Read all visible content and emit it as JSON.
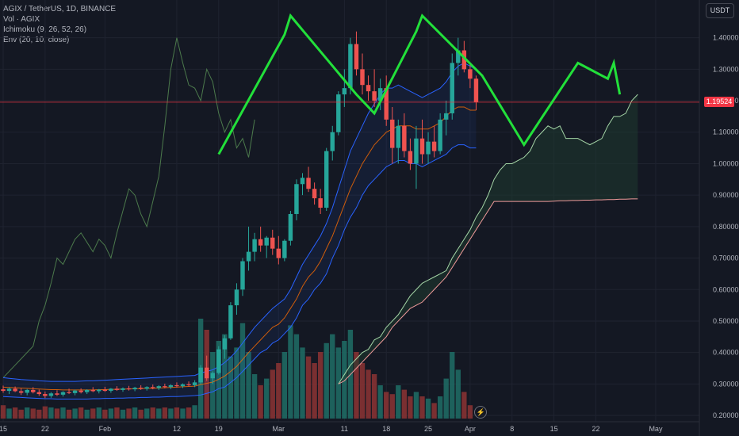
{
  "legend": {
    "symbol": "AGIX / TetherUS, 1D, BINANCE",
    "volume": "Vol · AGIX",
    "ichimoku": "Ichimoku (9, 26, 52, 26)",
    "envelope": "Env (20, 10, close)"
  },
  "currency_button": "USDT",
  "current_price_label": "1.19524",
  "bolt_icon": "lightning-icon",
  "colors": {
    "background": "#141823",
    "up": "#26a69a",
    "down": "#ef5350",
    "pattern": "#22e03a",
    "envelope": "#2962ff",
    "cloud": "#1d3a2f",
    "lagging": "#4c7a4c"
  },
  "chart_data": {
    "type": "candlestick",
    "y_axis": {
      "min": 0.18,
      "max": 1.52,
      "ticks": [
        "1.40000",
        "1.30000",
        "1.20000",
        "1.10000",
        "1.00000",
        "0.90000",
        "0.80000",
        "0.70000",
        "0.60000",
        "0.50000",
        "0.40000",
        "0.30000",
        "0.20000"
      ],
      "tick_values": [
        1.4,
        1.3,
        1.2,
        1.1,
        1.0,
        0.9,
        0.8,
        0.7,
        0.6,
        0.5,
        0.4,
        0.3,
        0.2
      ]
    },
    "x_axis": {
      "labels": [
        "15",
        "22",
        "Feb",
        "12",
        "19",
        "Mar",
        "11",
        "18",
        "25",
        "Apr",
        "8",
        "15",
        "22",
        "May"
      ],
      "label_index": [
        0,
        7,
        17,
        29,
        36,
        46,
        57,
        64,
        71,
        78,
        85,
        92,
        99,
        109
      ]
    },
    "current_price": 1.19524,
    "candles": [
      [
        0.283,
        0.295,
        0.272,
        0.278
      ],
      [
        0.278,
        0.289,
        0.268,
        0.285
      ],
      [
        0.285,
        0.292,
        0.274,
        0.277
      ],
      [
        0.277,
        0.286,
        0.265,
        0.272
      ],
      [
        0.272,
        0.284,
        0.264,
        0.281
      ],
      [
        0.281,
        0.29,
        0.27,
        0.274
      ],
      [
        0.274,
        0.282,
        0.262,
        0.268
      ],
      [
        0.268,
        0.276,
        0.255,
        0.262
      ],
      [
        0.262,
        0.274,
        0.256,
        0.27
      ],
      [
        0.27,
        0.28,
        0.262,
        0.266
      ],
      [
        0.266,
        0.277,
        0.26,
        0.274
      ],
      [
        0.274,
        0.285,
        0.268,
        0.271
      ],
      [
        0.271,
        0.282,
        0.264,
        0.279
      ],
      [
        0.279,
        0.286,
        0.27,
        0.274
      ],
      [
        0.274,
        0.283,
        0.268,
        0.281
      ],
      [
        0.281,
        0.29,
        0.274,
        0.277
      ],
      [
        0.277,
        0.284,
        0.27,
        0.282
      ],
      [
        0.282,
        0.291,
        0.275,
        0.278
      ],
      [
        0.278,
        0.287,
        0.272,
        0.285
      ],
      [
        0.285,
        0.293,
        0.278,
        0.281
      ],
      [
        0.281,
        0.289,
        0.275,
        0.286
      ],
      [
        0.286,
        0.294,
        0.279,
        0.283
      ],
      [
        0.283,
        0.291,
        0.277,
        0.288
      ],
      [
        0.288,
        0.296,
        0.281,
        0.285
      ],
      [
        0.285,
        0.293,
        0.279,
        0.29
      ],
      [
        0.29,
        0.298,
        0.283,
        0.287
      ],
      [
        0.287,
        0.296,
        0.281,
        0.293
      ],
      [
        0.293,
        0.301,
        0.286,
        0.29
      ],
      [
        0.29,
        0.299,
        0.284,
        0.296
      ],
      [
        0.296,
        0.305,
        0.289,
        0.293
      ],
      [
        0.293,
        0.302,
        0.287,
        0.299
      ],
      [
        0.299,
        0.308,
        0.292,
        0.296
      ],
      [
        0.296,
        0.312,
        0.29,
        0.305
      ],
      [
        0.305,
        0.36,
        0.3,
        0.352
      ],
      [
        0.352,
        0.39,
        0.31,
        0.318
      ],
      [
        0.318,
        0.34,
        0.3,
        0.335
      ],
      [
        0.335,
        0.42,
        0.33,
        0.41
      ],
      [
        0.41,
        0.455,
        0.38,
        0.445
      ],
      [
        0.445,
        0.56,
        0.44,
        0.55
      ],
      [
        0.55,
        0.62,
        0.52,
        0.6
      ],
      [
        0.6,
        0.7,
        0.58,
        0.69
      ],
      [
        0.69,
        0.8,
        0.66,
        0.72
      ],
      [
        0.72,
        0.78,
        0.69,
        0.76
      ],
      [
        0.76,
        0.8,
        0.72,
        0.74
      ],
      [
        0.74,
        0.77,
        0.7,
        0.765
      ],
      [
        0.765,
        0.79,
        0.71,
        0.73
      ],
      [
        0.73,
        0.77,
        0.68,
        0.7
      ],
      [
        0.7,
        0.76,
        0.69,
        0.755
      ],
      [
        0.755,
        0.85,
        0.74,
        0.84
      ],
      [
        0.84,
        0.95,
        0.82,
        0.935
      ],
      [
        0.935,
        0.97,
        0.9,
        0.955
      ],
      [
        0.955,
        0.99,
        0.91,
        0.92
      ],
      [
        0.92,
        0.94,
        0.87,
        0.89
      ],
      [
        0.89,
        0.92,
        0.84,
        0.86
      ],
      [
        0.86,
        1.05,
        0.85,
        1.04
      ],
      [
        1.04,
        1.12,
        1.01,
        1.1
      ],
      [
        1.1,
        1.23,
        1.09,
        1.22
      ],
      [
        1.22,
        1.3,
        1.18,
        1.24
      ],
      [
        1.24,
        1.4,
        1.22,
        1.38
      ],
      [
        1.38,
        1.42,
        1.28,
        1.3
      ],
      [
        1.3,
        1.35,
        1.22,
        1.25
      ],
      [
        1.25,
        1.28,
        1.2,
        1.23
      ],
      [
        1.23,
        1.3,
        1.18,
        1.2
      ],
      [
        1.2,
        1.27,
        1.17,
        1.24
      ],
      [
        1.24,
        1.28,
        1.12,
        1.14
      ],
      [
        1.14,
        1.18,
        1.0,
        1.05
      ],
      [
        1.05,
        1.14,
        1.0,
        1.12
      ],
      [
        1.12,
        1.16,
        1.02,
        1.04
      ],
      [
        1.04,
        1.08,
        0.98,
        1.0
      ],
      [
        1.0,
        1.12,
        0.92,
        1.08
      ],
      [
        1.08,
        1.14,
        1.0,
        1.03
      ],
      [
        1.03,
        1.1,
        1.0,
        1.07
      ],
      [
        1.07,
        1.12,
        1.02,
        1.04
      ],
      [
        1.04,
        1.16,
        1.03,
        1.14
      ],
      [
        1.14,
        1.2,
        1.09,
        1.16
      ],
      [
        1.16,
        1.35,
        1.14,
        1.32
      ],
      [
        1.32,
        1.4,
        1.28,
        1.36
      ],
      [
        1.36,
        1.39,
        1.29,
        1.3
      ],
      [
        1.3,
        1.32,
        1.24,
        1.27
      ],
      [
        1.27,
        1.28,
        1.17,
        1.195
      ]
    ],
    "volume": [
      0.06,
      0.045,
      0.05,
      0.04,
      0.05,
      0.045,
      0.04,
      0.055,
      0.05,
      0.045,
      0.05,
      0.04,
      0.045,
      0.05,
      0.04,
      0.045,
      0.05,
      0.04,
      0.045,
      0.05,
      0.04,
      0.045,
      0.05,
      0.04,
      0.045,
      0.05,
      0.045,
      0.05,
      0.045,
      0.05,
      0.045,
      0.05,
      0.06,
      0.45,
      0.4,
      0.3,
      0.35,
      0.38,
      0.28,
      0.32,
      0.43,
      0.3,
      0.2,
      0.15,
      0.18,
      0.22,
      0.25,
      0.3,
      0.42,
      0.38,
      0.32,
      0.28,
      0.25,
      0.3,
      0.34,
      0.38,
      0.32,
      0.35,
      0.4,
      0.3,
      0.25,
      0.22,
      0.2,
      0.15,
      0.12,
      0.11,
      0.15,
      0.13,
      0.1,
      0.12,
      0.1,
      0.09,
      0.07,
      0.1,
      0.18,
      0.3,
      0.22,
      0.12,
      0.06
    ],
    "volume_colors_follow_candles": true,
    "envelope": {
      "upper": [
        0.32,
        0.318,
        0.316,
        0.314,
        0.313,
        0.312,
        0.31,
        0.309,
        0.308,
        0.308,
        0.308,
        0.308,
        0.308,
        0.309,
        0.31,
        0.31,
        0.311,
        0.312,
        0.313,
        0.314,
        0.315,
        0.316,
        0.317,
        0.318,
        0.319,
        0.32,
        0.321,
        0.322,
        0.323,
        0.324,
        0.325,
        0.326,
        0.327,
        0.335,
        0.34,
        0.345,
        0.355,
        0.368,
        0.385,
        0.405,
        0.43,
        0.455,
        0.48,
        0.5,
        0.52,
        0.54,
        0.555,
        0.57,
        0.6,
        0.64,
        0.68,
        0.71,
        0.74,
        0.77,
        0.81,
        0.86,
        0.92,
        0.98,
        1.04,
        1.08,
        1.12,
        1.16,
        1.19,
        1.22,
        1.24,
        1.24,
        1.25,
        1.24,
        1.23,
        1.22,
        1.21,
        1.22,
        1.23,
        1.24,
        1.26,
        1.29,
        1.31,
        1.32,
        1.31,
        1.3
      ],
      "middle": [
        0.29,
        0.289,
        0.288,
        0.287,
        0.286,
        0.285,
        0.284,
        0.283,
        0.282,
        0.282,
        0.281,
        0.281,
        0.281,
        0.281,
        0.281,
        0.281,
        0.282,
        0.282,
        0.283,
        0.283,
        0.284,
        0.284,
        0.285,
        0.285,
        0.286,
        0.286,
        0.287,
        0.288,
        0.289,
        0.29,
        0.291,
        0.292,
        0.293,
        0.298,
        0.302,
        0.306,
        0.315,
        0.325,
        0.34,
        0.356,
        0.378,
        0.4,
        0.42,
        0.44,
        0.46,
        0.48,
        0.49,
        0.51,
        0.54,
        0.57,
        0.61,
        0.64,
        0.66,
        0.69,
        0.73,
        0.77,
        0.82,
        0.87,
        0.92,
        0.96,
        1.0,
        1.03,
        1.06,
        1.08,
        1.1,
        1.11,
        1.12,
        1.12,
        1.12,
        1.11,
        1.11,
        1.11,
        1.12,
        1.13,
        1.15,
        1.17,
        1.18,
        1.18,
        1.17,
        1.17
      ],
      "lower": [
        0.26,
        0.259,
        0.258,
        0.257,
        0.256,
        0.255,
        0.254,
        0.253,
        0.253,
        0.252,
        0.252,
        0.252,
        0.252,
        0.252,
        0.252,
        0.253,
        0.253,
        0.254,
        0.254,
        0.255,
        0.255,
        0.256,
        0.256,
        0.257,
        0.257,
        0.258,
        0.258,
        0.259,
        0.26,
        0.26,
        0.261,
        0.262,
        0.263,
        0.265,
        0.27,
        0.275,
        0.285,
        0.29,
        0.305,
        0.32,
        0.34,
        0.36,
        0.38,
        0.4,
        0.41,
        0.43,
        0.44,
        0.46,
        0.48,
        0.51,
        0.55,
        0.57,
        0.6,
        0.62,
        0.65,
        0.7,
        0.74,
        0.79,
        0.83,
        0.86,
        0.9,
        0.93,
        0.95,
        0.97,
        0.99,
        1.0,
        1.01,
        1.01,
        1.0,
        1.0,
        0.99,
        1.0,
        1.01,
        1.02,
        1.03,
        1.05,
        1.06,
        1.06,
        1.05,
        1.05
      ]
    },
    "ichimoku": {
      "cloud_start_index": 56,
      "span_a": [
        0.3,
        0.33,
        0.36,
        0.38,
        0.4,
        0.41,
        0.44,
        0.45,
        0.48,
        0.5,
        0.52,
        0.55,
        0.58,
        0.6,
        0.62,
        0.63,
        0.64,
        0.65,
        0.66,
        0.7,
        0.73,
        0.76,
        0.79,
        0.83,
        0.86,
        0.9,
        0.95,
        0.98,
        1.0,
        1.0,
        1.01,
        1.02,
        1.04,
        1.08,
        1.1,
        1.12,
        1.11,
        1.12,
        1.08,
        1.08,
        1.08,
        1.07,
        1.06,
        1.07,
        1.08,
        1.12,
        1.15,
        1.15,
        1.16,
        1.2,
        1.22
      ],
      "span_b": [
        0.3,
        0.31,
        0.33,
        0.35,
        0.37,
        0.39,
        0.41,
        0.43,
        0.45,
        0.48,
        0.5,
        0.52,
        0.54,
        0.55,
        0.56,
        0.58,
        0.6,
        0.62,
        0.64,
        0.67,
        0.7,
        0.73,
        0.76,
        0.79,
        0.82,
        0.85,
        0.88,
        0.88,
        0.88,
        0.88,
        0.88,
        0.88,
        0.88,
        0.88,
        0.88,
        0.88,
        0.881,
        0.882,
        0.882,
        0.883,
        0.883,
        0.884,
        0.884,
        0.885,
        0.885,
        0.886,
        0.886,
        0.887,
        0.887,
        0.888,
        0.888
      ],
      "lagging_start_index": 0,
      "lagging": [
        0.32,
        0.34,
        0.36,
        0.38,
        0.4,
        0.42,
        0.5,
        0.55,
        0.62,
        0.7,
        0.68,
        0.72,
        0.76,
        0.78,
        0.75,
        0.72,
        0.76,
        0.74,
        0.7,
        0.78,
        0.85,
        0.92,
        0.9,
        0.84,
        0.8,
        0.88,
        0.96,
        1.12,
        1.3,
        1.4,
        1.32,
        1.25,
        1.24,
        1.2,
        1.3,
        1.26,
        1.16,
        1.1,
        1.14,
        1.05,
        1.08,
        1.02,
        1.14
      ]
    },
    "pattern_polyline": [
      [
        36,
        1.03
      ],
      [
        47,
        1.41
      ],
      [
        48,
        1.47
      ],
      [
        59,
        1.22
      ],
      [
        62,
        1.16
      ],
      [
        69,
        1.42
      ],
      [
        70,
        1.47
      ],
      [
        80,
        1.28
      ],
      [
        87,
        1.06
      ],
      [
        96,
        1.32
      ],
      [
        97,
        1.31
      ],
      [
        101,
        1.27
      ],
      [
        102,
        1.32
      ],
      [
        103,
        1.22
      ]
    ],
    "pattern_points_final_arrow": true
  }
}
